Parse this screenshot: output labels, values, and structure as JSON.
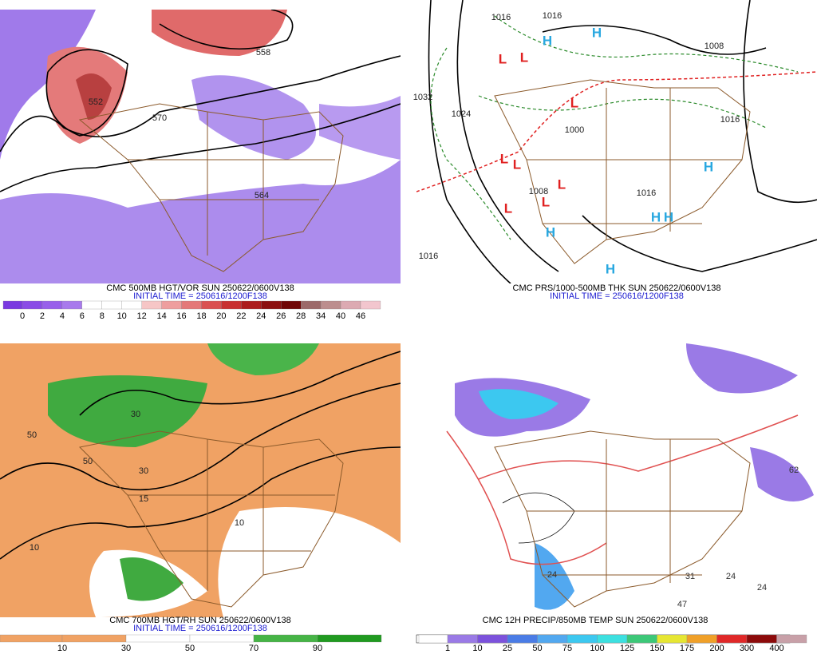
{
  "panels": [
    {
      "caption": "CMC 500MB HGT/VOR SUN 250622/0600V138",
      "initial_time": "INITIAL TIME = 250616/1200F138",
      "colorbar": {
        "labels": [
          "0",
          "2",
          "4",
          "6",
          "8",
          "10",
          "12",
          "14",
          "16",
          "18",
          "20",
          "22",
          "24",
          "26",
          "28",
          "34",
          "40",
          "46"
        ],
        "colors": [
          "#7a3ae0",
          "#8a4ce6",
          "#9860ea",
          "#a87aec",
          "#ffffff",
          "#ffffff",
          "#ffffff",
          "#f6c6c6",
          "#ee9e9e",
          "#e47878",
          "#da5050",
          "#c83030",
          "#ac1c1c",
          "#8c1010",
          "#700606",
          "#9c6a6a",
          "#bc8e8e",
          "#dcaab2",
          "#f2c6ce"
        ]
      },
      "labels": [
        "552",
        "558",
        "564",
        "570"
      ]
    },
    {
      "caption": "CMC PRS/1000-500MB THK SUN 250622/0600V138",
      "initial_time": "INITIAL TIME = 250616/1200F138",
      "highs": [
        "H",
        "H",
        "H",
        "H",
        "H",
        "H",
        "H"
      ],
      "lows": [
        "L",
        "L",
        "L",
        "L",
        "L",
        "L",
        "L",
        "L"
      ],
      "labels": [
        "1016",
        "1016",
        "1008",
        "1024",
        "1000",
        "1032",
        "1008",
        "1016",
        "1016",
        "1016"
      ]
    },
    {
      "caption": "CMC 700MB HGT/RH SUN 250622/0600V138",
      "initial_time": "INITIAL TIME = 250616/1200F138",
      "colorbar": {
        "labels": [
          "10",
          "30",
          "50",
          "70",
          "90"
        ],
        "colors": [
          "#f0a264",
          "#f0a264",
          "#ffffff",
          "#ffffff",
          "#46b446",
          "#209a20"
        ]
      },
      "labels": [
        "50",
        "10",
        "30",
        "50",
        "15",
        "10",
        "30"
      ]
    },
    {
      "caption": "CMC 12H PRECIP/850MB TEMP SUN 250622/0600V138",
      "colorbar": {
        "labels": [
          "1",
          "10",
          "25",
          "50",
          "75",
          "100",
          "125",
          "150",
          "175",
          "200",
          "300",
          "400"
        ],
        "colors": [
          "#ffffff",
          "#9a7ae6",
          "#7c52dc",
          "#4a7ce6",
          "#52a8f0",
          "#3cc8f0",
          "#3ce0e0",
          "#3cc878",
          "#e6e632",
          "#f0a028",
          "#e02828",
          "#8c0a0a",
          "#c8a0a8"
        ]
      },
      "labels": [
        "24",
        "31",
        "24",
        "47",
        "24",
        "62"
      ]
    }
  ]
}
